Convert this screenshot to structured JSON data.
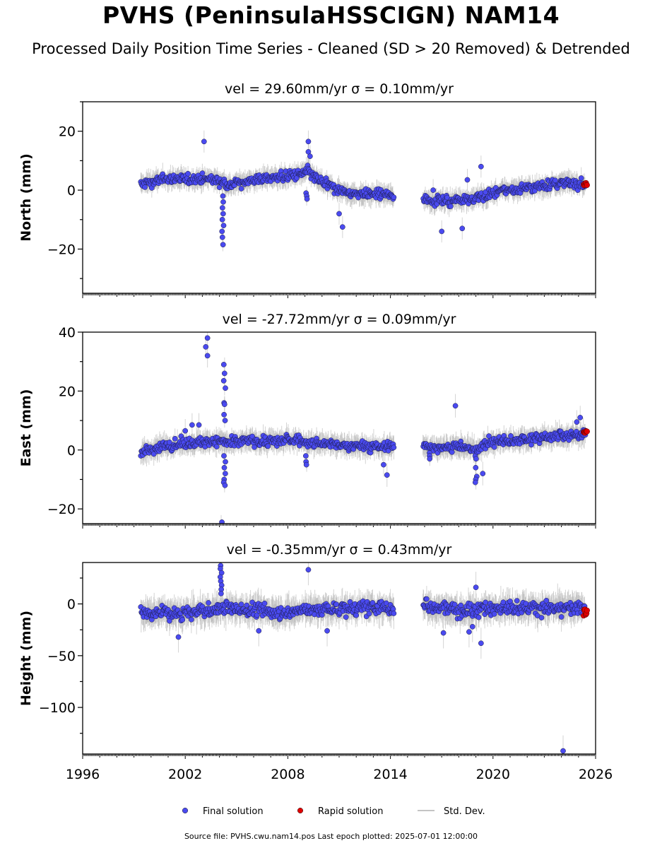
{
  "title": "PVHS (PeninsulaHSSCIGN) NAM14",
  "subtitle": "Processed Daily Position Time Series - Cleaned (SD > 20 Removed) & Detrended",
  "footer": "Source file: PVHS.cwu.nam14.pos  Last epoch plotted: 2025-07-01 12:00:00",
  "colors": {
    "final": "#4a4af0",
    "rapid": "#e00000",
    "stddev": "#b0b0b0",
    "edge": "#1a1a40"
  },
  "legend": [
    {
      "label": "Final solution",
      "kind": "dot",
      "color": "#4a4af0"
    },
    {
      "label": "Rapid solution",
      "kind": "dot",
      "color": "#e00000"
    },
    {
      "label": "Std. Dev.",
      "kind": "line",
      "color": "#b0b0b0"
    }
  ],
  "chart_data": [
    {
      "type": "scatter",
      "title": "vel = 29.60mm/yr   σ = 0.10mm/yr",
      "ylabel": "North (mm)",
      "xlim": [
        1996,
        2026
      ],
      "ylim": [
        -35,
        30
      ],
      "yticks": [
        -20,
        0,
        20
      ],
      "xticks": [
        1996,
        2002,
        2008,
        2014,
        2020,
        2026
      ],
      "segments": [
        {
          "x": [
            1999.4,
            2000.5,
            2001.5,
            2002.5,
            2003.5,
            2004.2,
            2004.6,
            2005.5,
            2006.5,
            2007.5,
            2008.5,
            2009.2,
            2009.6,
            2010.5,
            2011.5,
            2012.5,
            2013.5,
            2014.2
          ],
          "y": [
            2,
            3.5,
            4,
            3.5,
            4,
            3,
            1.5,
            3,
            4,
            4.5,
            5,
            6.5,
            4,
            1,
            -1,
            -1.5,
            -1.5,
            -2
          ]
        },
        {
          "x": [
            2015.9,
            2016.5,
            2017.5,
            2018.5,
            2019.5,
            2020.5,
            2021.5,
            2022.5,
            2023.5,
            2024.5,
            2025.4
          ],
          "y": [
            -3,
            -3.5,
            -3.5,
            -3,
            -2,
            0,
            0.5,
            1,
            2,
            2.5,
            2
          ]
        }
      ],
      "final_noise": 1.5,
      "rapid": {
        "x": [
          2025.3,
          2025.5
        ],
        "y": [
          1.5,
          2.5
        ]
      },
      "outliers": {
        "x": [
          2003.1,
          2009.2,
          2009.2,
          2009.3,
          2011.0,
          2011.2,
          2017.0,
          2018.2,
          2018.5,
          2019.3,
          2016.5
        ],
        "y": [
          16.5,
          16.5,
          13,
          11.5,
          -8,
          -12.5,
          -14,
          -13,
          3.5,
          8,
          0
        ]
      },
      "excursions": [
        {
          "x": 2004.2,
          "y": [
            -2,
            -4,
            -6,
            -8,
            -10,
            -12,
            -14,
            -16,
            -18.5
          ]
        },
        {
          "x": 2009.1,
          "y": [
            -1,
            -2,
            -3
          ]
        }
      ]
    },
    {
      "type": "scatter",
      "title": "vel = -27.72mm/yr   σ = 0.09mm/yr",
      "ylabel": "East (mm)",
      "xlim": [
        1996,
        2026
      ],
      "ylim": [
        -25,
        40
      ],
      "yticks": [
        -20,
        0,
        20,
        40
      ],
      "xticks": [
        1996,
        2002,
        2008,
        2014,
        2020,
        2026
      ],
      "segments": [
        {
          "x": [
            1999.4,
            2000.5,
            2001.5,
            2002.5,
            2003.5,
            2004.2,
            2004.6,
            2005.5,
            2006.5,
            2007.5,
            2008.5,
            2009.2,
            2009.6,
            2010.5,
            2011.5,
            2012.5,
            2013.5,
            2014.2
          ],
          "y": [
            -1,
            1,
            2,
            2.5,
            3,
            3,
            2,
            3,
            3,
            3,
            3.5,
            2,
            2.5,
            2,
            1.5,
            1,
            1,
            1.5
          ]
        },
        {
          "x": [
            2015.9,
            2016.5,
            2017.5,
            2018.5,
            2019.0,
            2019.5,
            2020.5,
            2021.5,
            2022.5,
            2023.5,
            2024.5,
            2025.4
          ],
          "y": [
            1,
            1,
            1,
            1,
            0,
            2,
            3,
            3.5,
            4,
            4.5,
            5,
            5.5
          ]
        }
      ],
      "final_noise": 1.6,
      "rapid": {
        "x": [
          2025.3,
          2025.5
        ],
        "y": [
          5.5,
          6.5
        ]
      },
      "outliers": {
        "x": [
          2003.3,
          2003.2,
          2003.3,
          2002.4,
          2002.8,
          2013.6,
          2013.8,
          2017.8,
          2019.4,
          2024.9,
          2025.1,
          2002.0
        ],
        "y": [
          38,
          35,
          32,
          8.5,
          8.5,
          -5,
          -8.5,
          15,
          -8,
          9.5,
          11,
          6.5
        ]
      },
      "excursions": [
        {
          "x": 2004.3,
          "y": [
            29,
            26,
            23.5,
            21,
            16,
            15.5,
            12,
            10
          ]
        },
        {
          "x": 2004.3,
          "y": [
            -2,
            -4,
            -6,
            -8,
            -10,
            -11,
            -12
          ]
        },
        {
          "x": 2004.1,
          "y": [
            -24.5
          ]
        },
        {
          "x": 2009.1,
          "y": [
            -2,
            -4,
            -5
          ]
        },
        {
          "x": 2019.0,
          "y": [
            -3,
            -6,
            -9,
            -10,
            -11
          ]
        },
        {
          "x": 2016.3,
          "y": [
            -1,
            -2,
            -3
          ]
        }
      ]
    },
    {
      "type": "scatter",
      "title": "vel = -0.35mm/yr   σ = 0.43mm/yr",
      "ylabel": "Height (mm)",
      "xlim": [
        1996,
        2026
      ],
      "ylim": [
        -145,
        40
      ],
      "yticks": [
        -100,
        -50,
        0
      ],
      "xticks": [
        1996,
        2002,
        2008,
        2014,
        2020,
        2026
      ],
      "xticklabels": [
        "1996",
        "2002",
        "2008",
        "2014",
        "2020",
        "2026"
      ],
      "segments": [
        {
          "x": [
            1999.4,
            2000.5,
            2001.5,
            2002.5,
            2003.5,
            2004.3,
            2004.6,
            2005.5,
            2006.5,
            2007.5,
            2008.5,
            2009.2,
            2009.6,
            2010.5,
            2011.5,
            2012.5,
            2013.5,
            2014.2
          ],
          "y": [
            -10,
            -8,
            -10,
            -8,
            -6,
            -4,
            -4,
            -5,
            -6,
            -8,
            -8,
            -4,
            -6,
            -5,
            -5,
            -4,
            -4,
            -4
          ]
        },
        {
          "x": [
            2015.9,
            2016.5,
            2017.5,
            2018.5,
            2019.5,
            2020.5,
            2021.5,
            2022.5,
            2023.5,
            2024.5,
            2025.4
          ],
          "y": [
            0,
            -4,
            -5,
            -7,
            -5,
            -3,
            -3,
            -4,
            -4,
            -4,
            -4
          ]
        }
      ],
      "final_noise": 6,
      "rapid": {
        "x": [
          2025.3,
          2025.5
        ],
        "y": [
          -12,
          -5
        ]
      },
      "outliers": {
        "x": [
          2001.6,
          2006.3,
          2009.2,
          2010.3,
          2017.1,
          2018.6,
          2018.8,
          2019.3,
          2024.1,
          2019.0
        ],
        "y": [
          -32,
          -26,
          33,
          -26,
          -28,
          -27,
          -22,
          -38,
          -142,
          16
        ]
      },
      "excursions": [
        {
          "x": 2004.1,
          "y": [
            37,
            34,
            30,
            26,
            22,
            18,
            14,
            10
          ]
        }
      ]
    }
  ]
}
